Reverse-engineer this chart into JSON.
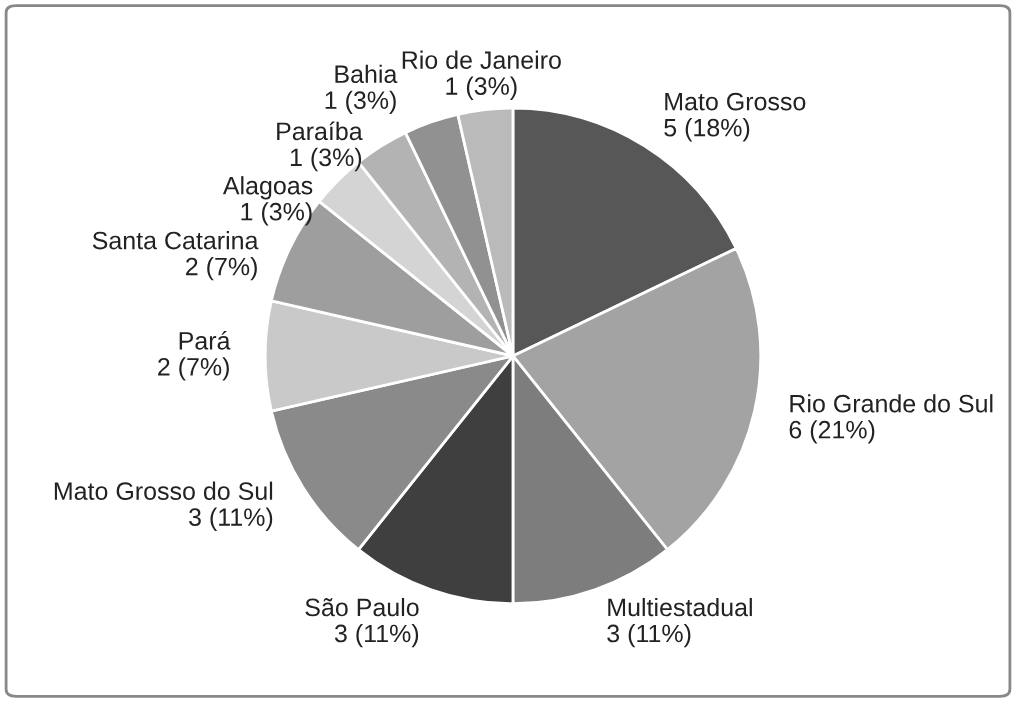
{
  "chart_data": {
    "type": "pie",
    "categories": [
      "Mato Grosso",
      "Rio Grande do Sul",
      "Multiestadual",
      "São Paulo",
      "Mato Grosso do Sul",
      "Pará",
      "Santa Catarina",
      "Alagoas",
      "Paraíba",
      "Bahia",
      "Rio de Janeiro"
    ],
    "values": [
      5,
      6,
      3,
      3,
      3,
      2,
      2,
      1,
      1,
      1,
      1
    ],
    "value_labels": [
      "5 (18%)",
      "6 (21%)",
      "3 (11%)",
      "3 (11%)",
      "3 (11%)",
      "2 (7%)",
      "2 (7%)",
      "1 (3%)",
      "1 (3%)",
      "1 (3%)",
      "1 (3%)"
    ],
    "colors": [
      "#575757",
      "#a3a3a3",
      "#7d7d7d",
      "#3f3f3f",
      "#8a8a8a",
      "#c9c9c9",
      "#9e9e9e",
      "#d4d4d4",
      "#b3b3b3",
      "#919191",
      "#bababa"
    ]
  }
}
